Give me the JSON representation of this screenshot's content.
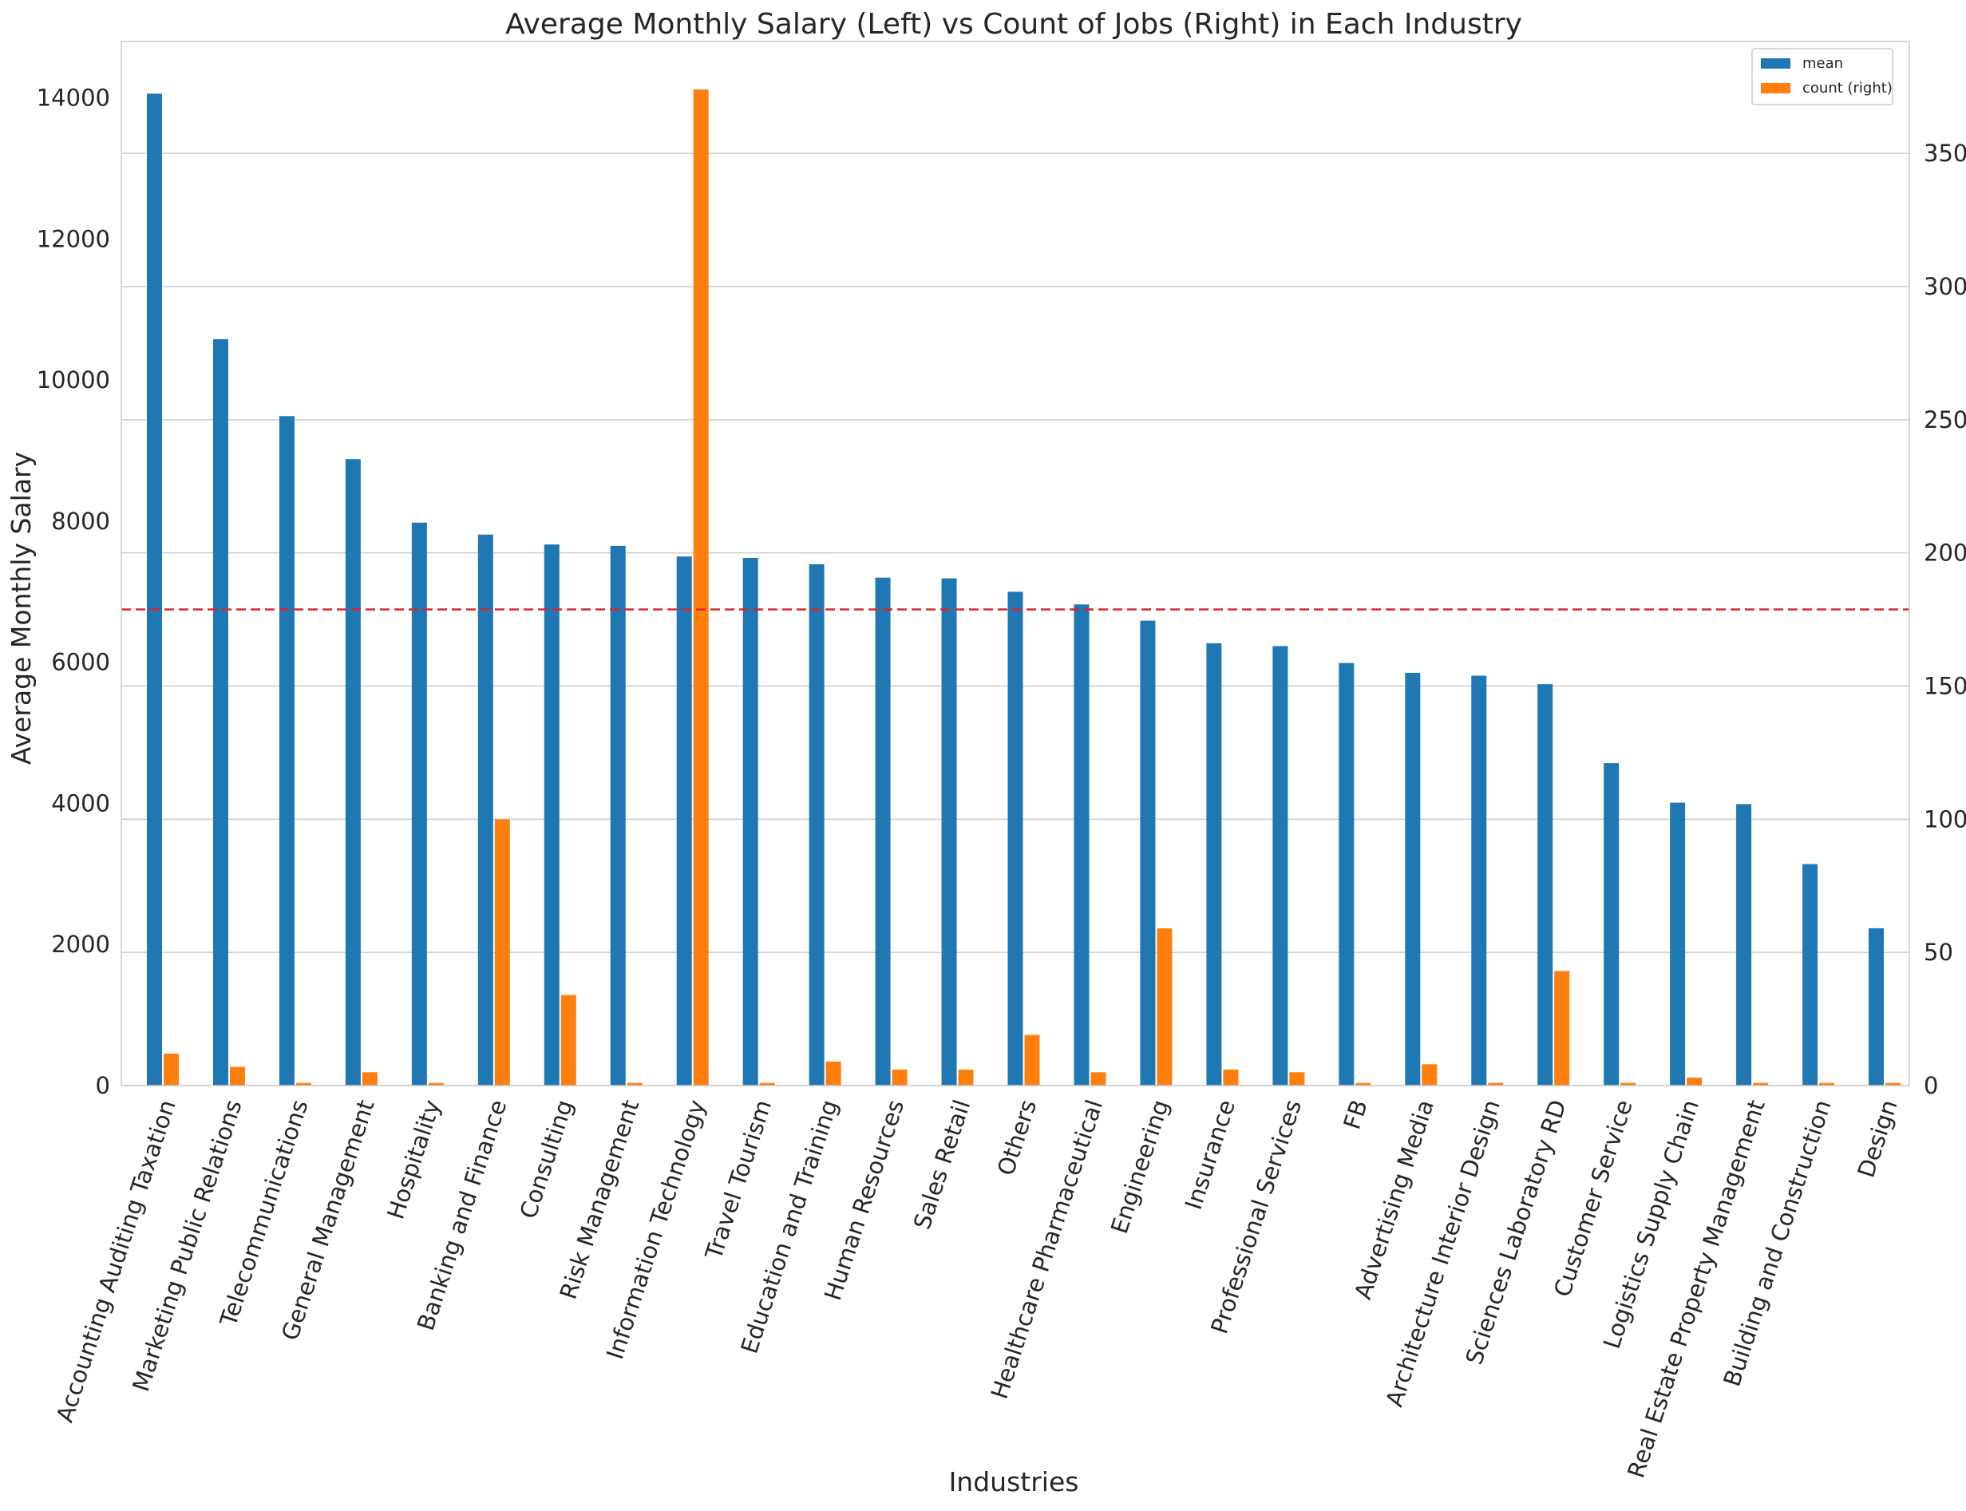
{
  "chart_data": {
    "type": "bar",
    "title": "Average Monthly Salary (Left) vs Count of Jobs (Right) in Each Industry",
    "xlabel": "Industries",
    "ylabel": "Average Monthly Salary",
    "ylim": [
      0,
      14800
    ],
    "y2lim": [
      0,
      392
    ],
    "yticks": [
      0,
      2000,
      4000,
      6000,
      8000,
      10000,
      12000,
      14000
    ],
    "y2ticks": [
      0,
      50,
      100,
      150,
      200,
      250,
      300,
      350
    ],
    "grid": true,
    "legend_position": "top-right",
    "reference_line": {
      "axis": "left",
      "value": 6750,
      "style": "dashed",
      "color": "#d62728"
    },
    "categories": [
      "Accounting  Auditing  Taxation",
      "Marketing  Public Relations",
      "Telecommunications",
      "General Management",
      "Hospitality",
      "Banking and Finance",
      "Consulting",
      "Risk Management",
      "Information Technology",
      "Travel  Tourism",
      "Education and Training",
      "Human Resources",
      "Sales  Retail",
      "Others",
      "Healthcare  Pharmaceutical",
      "Engineering",
      "Insurance",
      "Professional Services",
      "FB",
      "Advertising  Media",
      "Architecture  Interior Design",
      "Sciences  Laboratory  RD",
      "Customer Service",
      "Logistics  Supply Chain",
      "Real Estate  Property Management",
      "Building and Construction",
      "Design"
    ],
    "series": [
      {
        "name": "mean",
        "axis": "left",
        "color": "#1f77b4",
        "values": [
          14060,
          10580,
          9490,
          8880,
          7980,
          7810,
          7670,
          7650,
          7500,
          7480,
          7390,
          7200,
          7190,
          7000,
          6820,
          6590,
          6270,
          6230,
          5990,
          5850,
          5810,
          5690,
          4570,
          4010,
          3990,
          3140,
          2230
        ]
      },
      {
        "name": "count (right)",
        "axis": "right",
        "color": "#ff7f0e",
        "values": [
          12,
          7,
          1,
          5,
          1,
          100,
          34,
          1,
          374,
          1,
          9,
          6,
          6,
          19,
          5,
          59,
          6,
          5,
          1,
          8,
          1,
          43,
          1,
          3,
          1,
          1,
          1
        ]
      }
    ]
  }
}
